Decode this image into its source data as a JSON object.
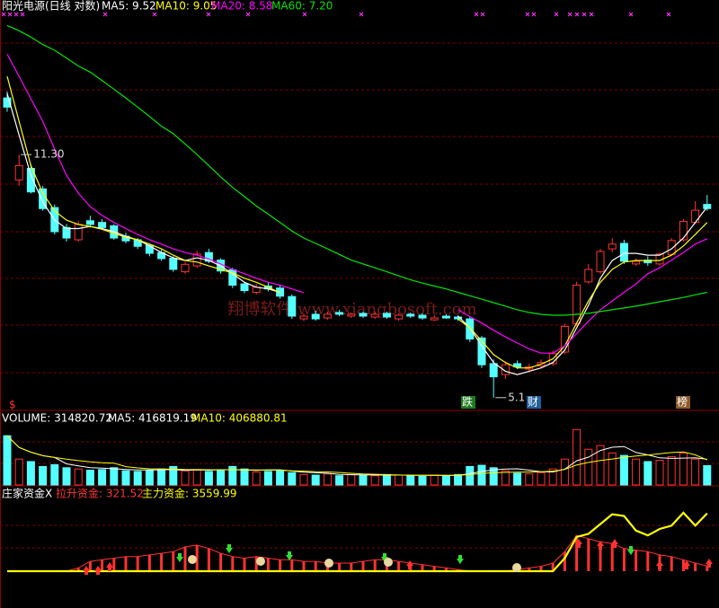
{
  "chart_data": [
    {
      "type": "candlestick",
      "title": "阳光电源(日线 对数)",
      "log_scale": true,
      "ylim": [
        4.92,
        18.2
      ],
      "up_color": "#ff3232",
      "down_color": "#54ffff",
      "open": [
        13.6,
        10.4,
        10.8,
        10.1,
        9.5,
        8.9,
        8.55,
        9.1,
        9.05,
        8.95,
        8.65,
        8.55,
        8.4,
        8.2,
        8.05,
        7.7,
        7.85,
        8.2,
        8.0,
        7.75,
        7.4,
        7.2,
        7.35,
        7.3,
        7.1,
        6.6,
        6.7,
        6.62,
        6.74,
        6.66,
        6.72,
        6.64,
        6.72,
        6.6,
        6.7,
        6.68,
        6.58,
        6.66,
        6.64,
        6.6,
        6.2,
        5.7,
        5.5,
        5.7,
        5.6,
        5.66,
        5.7,
        5.92,
        6.5,
        7.45,
        7.7,
        8.3,
        8.45,
        7.9,
        8.0,
        7.9,
        8.15,
        8.55,
        9.05,
        9.6
      ],
      "high": [
        13.9,
        11.3,
        10.95,
        10.2,
        9.6,
        9.0,
        9.1,
        9.25,
        9.15,
        9.0,
        8.75,
        8.6,
        8.45,
        8.28,
        8.1,
        7.95,
        8.25,
        8.3,
        8.05,
        7.8,
        7.45,
        7.4,
        7.45,
        7.38,
        7.15,
        6.72,
        6.78,
        6.76,
        6.8,
        6.74,
        6.76,
        6.76,
        6.76,
        6.72,
        6.74,
        6.72,
        6.68,
        6.7,
        6.68,
        6.64,
        6.24,
        5.78,
        5.74,
        5.76,
        5.7,
        5.78,
        5.95,
        6.5,
        7.45,
        7.9,
        8.3,
        8.6,
        8.55,
        8.05,
        8.1,
        8.2,
        8.6,
        9.15,
        9.7,
        9.9
      ],
      "low": [
        13.0,
        10.2,
        9.95,
        9.4,
        8.7,
        8.5,
        8.5,
        8.9,
        8.85,
        8.55,
        8.45,
        8.3,
        8.1,
        7.98,
        7.7,
        7.65,
        7.8,
        7.92,
        7.65,
        7.3,
        7.18,
        7.15,
        7.22,
        7.05,
        6.6,
        6.55,
        6.56,
        6.58,
        6.66,
        6.62,
        6.62,
        6.6,
        6.6,
        6.56,
        6.62,
        6.58,
        6.55,
        6.6,
        6.56,
        6.12,
        5.62,
        5.1,
        5.42,
        5.6,
        5.55,
        5.62,
        5.66,
        5.88,
        6.45,
        7.4,
        7.65,
        8.2,
        7.9,
        7.85,
        7.85,
        7.85,
        8.1,
        8.5,
        9.0,
        9.4
      ],
      "close": [
        13.2,
        10.9,
        10.0,
        9.47,
        8.78,
        8.6,
        8.99,
        8.99,
        8.9,
        8.6,
        8.52,
        8.37,
        8.18,
        8.04,
        7.76,
        7.89,
        8.16,
        7.97,
        7.72,
        7.37,
        7.24,
        7.32,
        7.28,
        7.11,
        6.66,
        6.66,
        6.6,
        6.7,
        6.7,
        6.7,
        6.66,
        6.7,
        6.64,
        6.68,
        6.66,
        6.62,
        6.62,
        6.62,
        6.6,
        6.18,
        5.68,
        5.46,
        5.68,
        5.64,
        5.64,
        5.72,
        5.89,
        6.44,
        7.37,
        7.76,
        8.23,
        8.43,
        7.97,
        7.97,
        7.93,
        8.16,
        8.53,
        9.08,
        9.42,
        9.47
      ],
      "series": [
        {
          "label": "MA5: 9.52",
          "color": "#ffffff",
          "values": [
            13.8,
            12.05,
            10.56,
            9.68,
            9.12,
            8.87,
            8.87,
            8.93,
            8.87,
            8.78,
            8.65,
            8.55,
            8.38,
            8.2,
            8.06,
            7.99,
            8.06,
            7.99,
            7.85,
            7.65,
            7.44,
            7.32,
            7.28,
            7.2,
            null,
            null,
            null,
            null,
            null,
            null,
            null,
            null,
            null,
            null,
            null,
            null,
            null,
            null,
            6.66,
            6.41,
            6.04,
            5.72,
            5.56,
            5.5,
            5.56,
            5.62,
            5.72,
            5.96,
            6.41,
            6.9,
            7.54,
            7.99,
            8.18,
            8.18,
            8.13,
            8.13,
            8.3,
            8.6,
            9.05,
            9.52
          ]
        },
        {
          "label": "MA10: 9.05",
          "color": "#ffff00",
          "values": [
            14.6,
            12.6,
            10.9,
            9.96,
            9.4,
            9.12,
            8.99,
            8.93,
            8.85,
            8.73,
            8.62,
            8.55,
            8.43,
            8.3,
            8.13,
            7.99,
            7.95,
            7.85,
            7.76,
            7.67,
            7.54,
            7.44,
            7.32,
            7.19,
            null,
            null,
            null,
            null,
            null,
            null,
            null,
            null,
            null,
            null,
            null,
            null,
            null,
            null,
            6.6,
            6.41,
            6.14,
            5.87,
            5.72,
            5.62,
            5.62,
            5.69,
            5.79,
            6.04,
            6.51,
            7.0,
            7.44,
            7.76,
            7.95,
            7.99,
            7.99,
            7.99,
            8.13,
            8.38,
            8.7,
            9.05
          ]
        },
        {
          "label": "MA20: 8.58",
          "color": "#ff00ff",
          "values": [
            15.7,
            14.6,
            13.56,
            12.6,
            11.5,
            10.56,
            9.96,
            9.53,
            9.26,
            9.05,
            8.87,
            8.7,
            8.55,
            8.43,
            8.3,
            8.2,
            8.13,
            8.03,
            7.9,
            7.76,
            7.65,
            7.54,
            7.44,
            7.37,
            7.28,
            7.19,
            null,
            null,
            null,
            null,
            null,
            null,
            null,
            null,
            null,
            null,
            null,
            null,
            6.8,
            6.65,
            6.51,
            6.36,
            6.22,
            6.1,
            5.98,
            5.9,
            5.9,
            6.04,
            6.29,
            6.55,
            6.8,
            7.0,
            7.2,
            7.4,
            7.65,
            7.8,
            8.0,
            8.2,
            8.43,
            8.58
          ]
        },
        {
          "label": "MA60: 7.20",
          "color": "#00e600",
          "values": [
            17.24,
            16.95,
            16.6,
            16.2,
            15.9,
            15.5,
            15.1,
            14.8,
            14.4,
            14.0,
            13.6,
            13.2,
            12.8,
            12.4,
            12.1,
            11.7,
            11.3,
            10.9,
            10.5,
            10.15,
            9.85,
            9.55,
            9.3,
            9.05,
            8.8,
            8.6,
            8.45,
            8.3,
            8.15,
            8.0,
            7.9,
            7.8,
            7.7,
            7.6,
            7.5,
            7.42,
            7.35,
            7.28,
            7.2,
            7.12,
            7.04,
            6.96,
            6.88,
            6.8,
            6.74,
            6.7,
            6.68,
            6.68,
            6.7,
            6.72,
            6.76,
            6.8,
            6.84,
            6.88,
            6.93,
            6.98,
            7.03,
            7.08,
            7.14,
            7.2
          ]
        }
      ],
      "annotations": [
        {
          "label": "11.30",
          "value": 11.3
        },
        {
          "label": "5.1",
          "value": 5.1
        }
      ],
      "signals": [
        "$",
        "跌",
        "财",
        "榜"
      ],
      "watermark": "翔博软件 www.xiangbosoft.com"
    },
    {
      "type": "volume",
      "label": "VOLUME: 314820.72",
      "ylim": [
        0,
        1050000
      ],
      "values": [
        800000,
        420000,
        380000,
        300000,
        330000,
        280000,
        260000,
        240000,
        250000,
        280000,
        230000,
        220000,
        240000,
        260000,
        300000,
        230000,
        250000,
        220000,
        240000,
        300000,
        260000,
        210000,
        220000,
        240000,
        200000,
        170000,
        160000,
        180000,
        150000,
        170000,
        160000,
        150000,
        170000,
        160000,
        150000,
        140000,
        160000,
        150000,
        170000,
        300000,
        320000,
        280000,
        230000,
        190000,
        180000,
        200000,
        260000,
        420000,
        900000,
        580000,
        640000,
        520000,
        480000,
        420000,
        380000,
        400000,
        460000,
        520000,
        420000,
        314820.72
      ],
      "series": [
        {
          "label": "MA5: 416819.19",
          "color": "#ffffff",
          "values": [
            800000,
            610000,
            533000,
            475000,
            446000,
            342000,
            310000,
            282000,
            272000,
            262000,
            252000,
            244000,
            244000,
            246000,
            250000,
            236000,
            244000,
            240000,
            248000,
            248000,
            244000,
            236000,
            246000,
            246000,
            226000,
            208000,
            198000,
            190000,
            172000,
            166000,
            164000,
            162000,
            160000,
            162000,
            158000,
            156000,
            156000,
            156000,
            154000,
            184000,
            220000,
            244000,
            260000,
            262000,
            240000,
            216000,
            212000,
            256000,
            392000,
            452000,
            560000,
            612000,
            624000,
            528000,
            488000,
            440000,
            432000,
            436000,
            440000,
            416819.19
          ]
        },
        {
          "label": "MA10: 406880.81",
          "color": "#ffff00",
          "values": [
            800000,
            610000,
            533000,
            475000,
            446000,
            418000,
            395000,
            375000,
            362000,
            354000,
            297000,
            277000,
            263000,
            259000,
            256000,
            251000,
            250000,
            248000,
            247000,
            249000,
            245000,
            244000,
            242000,
            240000,
            230000,
            224000,
            215000,
            211000,
            202000,
            189000,
            179000,
            173000,
            168000,
            160000,
            160000,
            157000,
            157000,
            154000,
            156000,
            169000,
            185000,
            198000,
            204000,
            207000,
            210000,
            215000,
            225000,
            252000,
            325000,
            366000,
            398000,
            422000,
            447000,
            470000,
            487000,
            507000,
            527000,
            537000,
            489000,
            406880.81
          ]
        }
      ]
    },
    {
      "type": "indicator",
      "title": "庄家资金X",
      "ylim": [
        0,
        4200
      ],
      "series": [
        {
          "label": "拉升资金: 321.52",
          "color": "#ff3232",
          "kind": "bar",
          "values": [
            0,
            0,
            0,
            0,
            0,
            0,
            200,
            600,
            700,
            800,
            900,
            900,
            1000,
            1100,
            1200,
            1500,
            1600,
            1400,
            1100,
            900,
            800,
            900,
            800,
            700,
            700,
            600,
            600,
            500,
            500,
            500,
            600,
            700,
            700,
            600,
            500,
            400,
            300,
            200,
            100,
            0,
            0,
            0,
            0,
            100,
            200,
            300,
            500,
            1200,
            2200,
            2000,
            1800,
            1700,
            1400,
            1300,
            1200,
            1000,
            900,
            700,
            500,
            321.52
          ]
        },
        {
          "label": "主力资金: 3559.99",
          "color": "#ffff00",
          "kind": "line",
          "values": [
            0,
            0,
            0,
            0,
            0,
            0,
            0,
            0,
            0,
            0,
            0,
            0,
            0,
            0,
            0,
            0,
            0,
            0,
            0,
            0,
            0,
            0,
            0,
            0,
            0,
            0,
            0,
            0,
            0,
            0,
            0,
            0,
            0,
            0,
            0,
            0,
            0,
            0,
            0,
            0,
            0,
            0,
            0,
            0,
            0,
            0,
            0,
            800,
            2100,
            2300,
            2900,
            3500,
            3400,
            2500,
            2200,
            2600,
            2800,
            3600,
            2800,
            3559.99
          ]
        }
      ]
    }
  ]
}
